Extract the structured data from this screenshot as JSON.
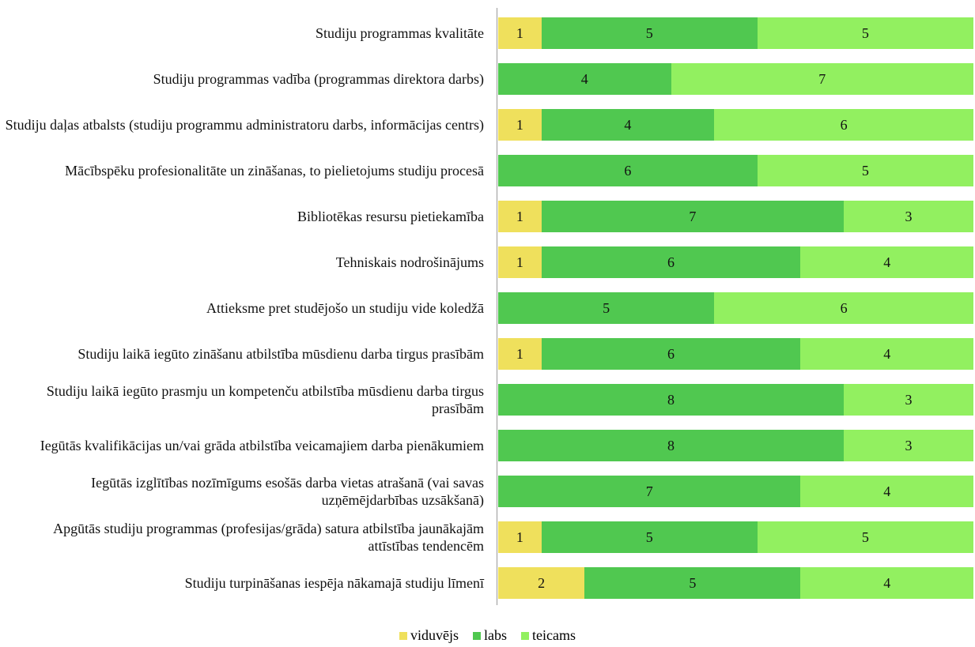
{
  "chart_data": {
    "type": "stacked_bar_horizontal",
    "categories": [
      "Studiju programmas kvalitāte",
      "Studiju programmas vadība (programmas direktora darbs)",
      "Studiju daļas atbalsts (studiju programmu administratoru darbs, informācijas centrs)",
      "Mācībspēku profesionalitāte un zināšanas, to pielietojums studiju procesā",
      "Bibliotēkas resursu pietiekamība",
      "Tehniskais nodrošinājums",
      "Attieksme pret studējošo un studiju vide koledžā",
      "Studiju laikā iegūto zināšanu atbilstība mūsdienu darba tirgus prasībām",
      "Studiju laikā iegūto prasmju un kompetenču atbilstība mūsdienu darba tirgus prasībām",
      "Iegūtās kvalifikācijas un/vai grāda atbilstība veicamajiem darba pienākumiem",
      "Iegūtās izglītības nozīmīgums esošās darba vietas atrašanā (vai savas uzņēmējdarbības uzsākšanā)",
      "Apgūtās studiju programmas (profesijas/grāda) satura atbilstība jaunākajām attīstības tendencēm",
      "Studiju turpināšanas iespēja nākamajā studiju līmenī"
    ],
    "series": [
      {
        "name": "viduvējs",
        "color": "#efe05c",
        "values": [
          1,
          null,
          1,
          null,
          1,
          1,
          null,
          1,
          null,
          null,
          null,
          1,
          2
        ]
      },
      {
        "name": "labs",
        "color": "#50c850",
        "values": [
          5,
          4,
          4,
          6,
          7,
          6,
          5,
          6,
          8,
          8,
          7,
          5,
          5
        ]
      },
      {
        "name": "teicams",
        "color": "#92f060",
        "values": [
          5,
          7,
          6,
          5,
          3,
          4,
          6,
          4,
          3,
          3,
          4,
          5,
          4
        ]
      }
    ],
    "xlim": [
      0,
      11
    ],
    "legend": "bottom"
  }
}
